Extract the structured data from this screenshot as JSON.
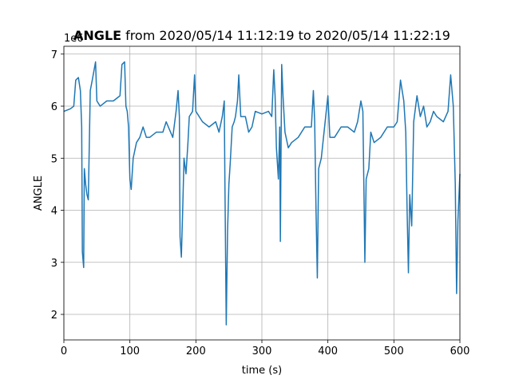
{
  "chart_data": {
    "type": "line",
    "title": {
      "bold": "ANGLE",
      "rest": "from 2020/05/14 11:12:19 to 2020/05/14 11:22:19"
    },
    "x_label": "time (s)",
    "y_label": "ANGLE",
    "y_offset_label": "1e6",
    "color": "#1f77b4",
    "grid": true,
    "xlim": [
      0,
      600
    ],
    "ylim": [
      1.51,
      7.15
    ],
    "xticks": [
      0,
      100,
      200,
      300,
      400,
      500,
      600
    ],
    "yticks": [
      2,
      3,
      4,
      5,
      6,
      7
    ],
    "x": [
      0,
      10,
      15,
      18,
      22,
      25,
      27,
      28,
      30,
      31,
      33,
      35,
      37,
      40,
      43,
      48,
      50,
      55,
      65,
      75,
      85,
      88,
      92,
      94,
      96,
      98,
      100,
      102,
      105,
      110,
      115,
      120,
      125,
      130,
      140,
      150,
      155,
      165,
      170,
      173,
      175,
      176,
      178,
      180,
      182,
      185,
      188,
      190,
      195,
      198,
      200,
      210,
      220,
      230,
      235,
      240,
      243,
      244,
      246,
      248,
      250,
      252,
      255,
      258,
      260,
      263,
      265,
      268,
      275,
      280,
      285,
      290,
      300,
      310,
      315,
      318,
      320,
      322,
      325,
      327,
      328,
      330,
      332,
      335,
      340,
      345,
      355,
      365,
      375,
      378,
      380,
      382,
      384,
      386,
      390,
      395,
      400,
      403,
      410,
      420,
      430,
      440,
      445,
      450,
      453,
      455,
      456,
      458,
      462,
      465,
      470,
      480,
      490,
      500,
      505,
      510,
      515,
      518,
      520,
      522,
      524,
      527,
      530,
      535,
      540,
      545,
      550,
      555,
      560,
      565,
      575,
      582,
      586,
      590,
      593,
      595,
      597,
      600
    ],
    "values": [
      5.9,
      5.95,
      6.0,
      6.5,
      6.55,
      6.3,
      5.6,
      3.2,
      2.9,
      4.8,
      4.5,
      4.3,
      4.2,
      6.3,
      6.5,
      6.85,
      6.1,
      6.0,
      6.1,
      6.1,
      6.2,
      6.8,
      6.85,
      6.0,
      5.9,
      5.6,
      4.6,
      4.4,
      5.0,
      5.3,
      5.4,
      5.6,
      5.4,
      5.4,
      5.5,
      5.5,
      5.7,
      5.4,
      5.9,
      6.3,
      5.8,
      3.5,
      3.1,
      4.0,
      5.0,
      4.7,
      5.3,
      5.8,
      5.9,
      6.6,
      5.9,
      5.7,
      5.6,
      5.7,
      5.5,
      5.8,
      6.1,
      4.5,
      1.8,
      3.6,
      4.5,
      4.9,
      5.6,
      5.7,
      5.8,
      6.1,
      6.6,
      5.8,
      5.8,
      5.5,
      5.6,
      5.9,
      5.85,
      5.9,
      5.8,
      6.7,
      6.2,
      5.2,
      4.6,
      5.6,
      3.4,
      6.8,
      6.2,
      5.5,
      5.2,
      5.3,
      5.4,
      5.6,
      5.6,
      6.3,
      5.7,
      4.0,
      2.7,
      4.8,
      5.0,
      5.6,
      6.2,
      5.4,
      5.4,
      5.6,
      5.6,
      5.5,
      5.7,
      6.1,
      5.9,
      4.0,
      3.0,
      4.6,
      4.8,
      5.5,
      5.3,
      5.4,
      5.6,
      5.6,
      5.7,
      6.5,
      6.1,
      5.5,
      4.0,
      2.8,
      4.3,
      3.7,
      5.7,
      6.2,
      5.8,
      6.0,
      5.6,
      5.7,
      5.9,
      5.8,
      5.7,
      5.9,
      6.6,
      6.0,
      4.5,
      2.4,
      3.8,
      4.7
    ]
  }
}
